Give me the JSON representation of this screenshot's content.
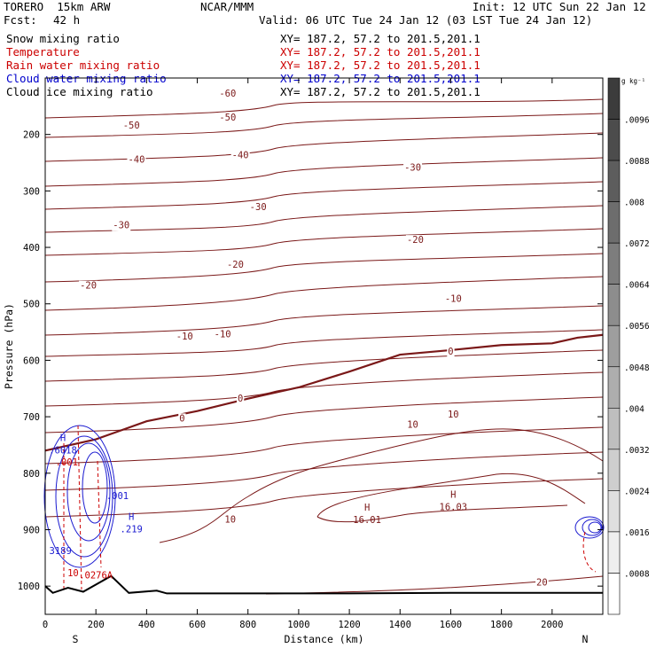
{
  "header": {
    "model": "TORERO  15km ARW",
    "org": "NCAR/MMM",
    "init": "Init: 12 UTC Sun 22 Jan 12",
    "fcst_label": "Fcst:",
    "fcst_value": "42 h",
    "valid": "Valid: 06 UTC Tue 24 Jan 12 (03 LST Tue 24 Jan 12)"
  },
  "fields": [
    {
      "name": "Snow mixing ratio",
      "xy": "XY= 187.2, 57.2 to 201.5,201.1",
      "color": "#000000"
    },
    {
      "name": "Temperature",
      "xy": "XY= 187.2, 57.2 to 201.5,201.1",
      "color": "#cc0000"
    },
    {
      "name": "Rain water mixing ratio",
      "xy": "XY= 187.2, 57.2 to 201.5,201.1",
      "color": "#cc0000"
    },
    {
      "name": "Cloud water mixing ratio",
      "xy": "XY= 187.2, 57.2 to 201.5,201.1",
      "color": "#0000cc"
    },
    {
      "name": "Cloud ice mixing ratio",
      "xy": "XY= 187.2, 57.2 to 201.5,201.1",
      "color": "#000000"
    }
  ],
  "colorbar": {
    "unit": "g kg⁻¹",
    "labels": [
      ".0096",
      ".0088",
      ".008",
      ".0072",
      ".0064",
      ".0056",
      ".0048",
      ".004",
      ".0032",
      ".0024",
      ".0016",
      ".0008"
    ]
  },
  "axis_end_labels": {
    "left": "S",
    "right": "N"
  },
  "chart_data": {
    "type": "contour",
    "xlabel": "Distance (km)",
    "ylabel": "Pressure (hPa)",
    "xlim": [
      0,
      2200
    ],
    "ylim": [
      1050,
      100
    ],
    "x_ticks": [
      0,
      200,
      400,
      600,
      800,
      1000,
      1200,
      1400,
      1600,
      1800,
      2000
    ],
    "y_ticks": [
      200,
      300,
      400,
      500,
      600,
      700,
      800,
      900,
      1000
    ],
    "temperature_contour_labels": [
      {
        "v": "-60",
        "x": 720,
        "p": 127
      },
      {
        "v": "-50",
        "x": 340,
        "p": 183
      },
      {
        "v": "-50",
        "x": 720,
        "p": 169
      },
      {
        "v": "-40",
        "x": 360,
        "p": 244
      },
      {
        "v": "-40",
        "x": 770,
        "p": 236
      },
      {
        "v": "-30",
        "x": 300,
        "p": 360
      },
      {
        "v": "-30",
        "x": 840,
        "p": 328
      },
      {
        "v": "-30",
        "x": 1450,
        "p": 258
      },
      {
        "v": "-20",
        "x": 170,
        "p": 467
      },
      {
        "v": "-20",
        "x": 750,
        "p": 430
      },
      {
        "v": "-20",
        "x": 1460,
        "p": 386
      },
      {
        "v": "-10",
        "x": 550,
        "p": 557
      },
      {
        "v": "-10",
        "x": 700,
        "p": 553
      },
      {
        "v": "-10",
        "x": 1610,
        "p": 490
      },
      {
        "v": "0",
        "x": 540,
        "p": 702
      },
      {
        "v": "0",
        "x": 770,
        "p": 667
      },
      {
        "v": "0",
        "x": 1600,
        "p": 584
      },
      {
        "v": "10",
        "x": 1450,
        "p": 713
      },
      {
        "v": "10",
        "x": 1610,
        "p": 695
      },
      {
        "v": "10",
        "x": 730,
        "p": 881
      },
      {
        "v": "20",
        "x": 1960,
        "p": 993
      }
    ],
    "temperature_highs": [
      {
        "label": "H",
        "value": "16.01",
        "x": 1270,
        "p": 885
      },
      {
        "label": "H",
        "value": "16.03",
        "x": 1610,
        "p": 862
      }
    ],
    "cloud_water_annotations": [
      {
        "label": "H",
        "value": ".6018",
        "x": 70,
        "p": 762
      },
      {
        "label": "",
        "value": ".001",
        "x": 285,
        "p": 843
      },
      {
        "label": "H",
        "value": ".219",
        "x": 340,
        "p": 902
      },
      {
        "label": "",
        "value": "3189",
        "x": 60,
        "p": 940
      }
    ],
    "rain_water_annotations": [
      {
        "label": "",
        "value": ".001",
        "x": 85,
        "p": 783
      },
      {
        "label": "",
        "value": ".0276A",
        "x": 200,
        "p": 983
      },
      {
        "label": "",
        "value": "10",
        "x": 110,
        "p": 979
      }
    ],
    "freezing_level_p": [
      760,
      740,
      708,
      690,
      668,
      648,
      620,
      590,
      582,
      573,
      570,
      560,
      555
    ],
    "freezing_level_x": [
      0,
      200,
      400,
      600,
      800,
      1000,
      1200,
      1400,
      1600,
      1800,
      2000,
      2100,
      2200
    ],
    "surface_p": [
      1000,
      1012,
      1003,
      1010,
      982,
      1012,
      1008,
      1013,
      1013,
      1013,
      1012,
      1012,
      1012
    ],
    "surface_x": [
      0,
      30,
      90,
      150,
      260,
      330,
      440,
      480,
      800,
      1200,
      1600,
      2000,
      2200
    ]
  }
}
